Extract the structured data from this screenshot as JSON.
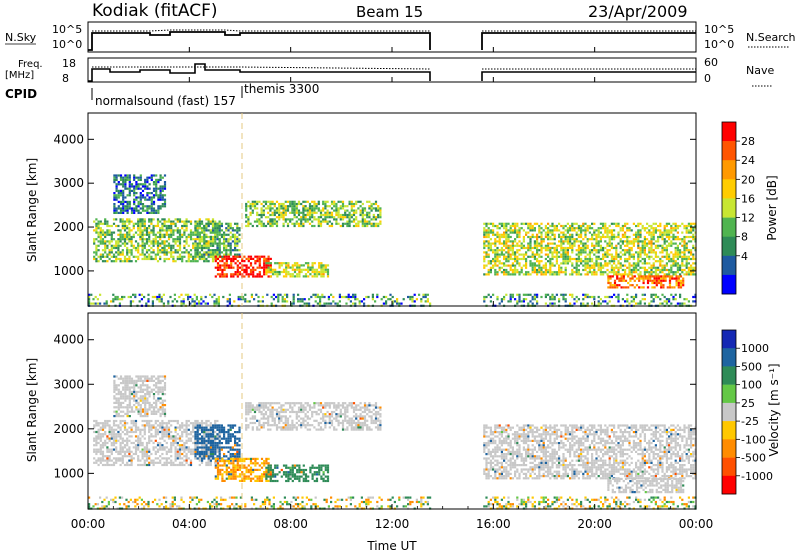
{
  "header": {
    "station": "Kodiak (fitACF)",
    "beam": "Beam 15",
    "date": "23/Apr/2009"
  },
  "strip1": {
    "left_label": "N.Sky",
    "left_ticks": [
      "10^5",
      "10^0"
    ],
    "right_label": "N.Search",
    "right_ticks": [
      "10^5",
      "10^0"
    ]
  },
  "strip2": {
    "left_label_line1": "Freq.",
    "left_label_line2": "[MHz]",
    "left_ticks": [
      "18",
      "8"
    ],
    "right_label": "Nave",
    "right_ticks": [
      "60",
      "0"
    ]
  },
  "cpid": {
    "label": "CPID",
    "modes": [
      {
        "name": "normalsound (fast) 157",
        "start_hour": 0
      },
      {
        "name": "themis 3300",
        "start_hour": 6.1
      }
    ]
  },
  "panel_power": {
    "ylabel": "Slant Range [km]",
    "colorbar_label": "Power [dB]",
    "colorbar_ticks": [
      "28",
      "24",
      "20",
      "16",
      "12",
      "8",
      "4"
    ],
    "colorbar_colors": [
      "#ff0000",
      "#ff5500",
      "#ff9900",
      "#ffcc00",
      "#c8e632",
      "#50b450",
      "#2e8b57",
      "#1e5aa0",
      "#0000ff"
    ]
  },
  "panel_velocity": {
    "ylabel": "Slant Range [km]",
    "colorbar_label": "Velocity [m s⁻¹]",
    "colorbar_ticks": [
      "1000",
      "500",
      "100",
      "25",
      "-25",
      "-100",
      "-500",
      "-1000"
    ],
    "colorbar_colors": [
      "#1428b4",
      "#1e64a0",
      "#2e8b57",
      "#64c846",
      "#c8c8c8",
      "#ffc800",
      "#ff8c00",
      "#ff5000",
      "#ff0000"
    ]
  },
  "chart_data": {
    "type": "heatmap",
    "xlabel": "Time UT",
    "x_ticks": [
      "00:00",
      "04:00",
      "08:00",
      "12:00",
      "16:00",
      "20:00",
      "00:00"
    ],
    "x_range_hours": [
      0,
      24
    ],
    "y_ticks": [
      "1000",
      "2000",
      "3000",
      "4000"
    ],
    "ylim_km": [
      200,
      4600
    ],
    "data_gap_hours": [
      13.5,
      15.6
    ],
    "echo_regions": [
      {
        "t_start": 0.2,
        "t_end": 5.2,
        "range_start_km": 1200,
        "range_end_km": 2200,
        "power_db": 14,
        "velocity": 0
      },
      {
        "t_start": 1.0,
        "t_end": 3.0,
        "range_start_km": 2300,
        "range_end_km": 3200,
        "power_db": 8,
        "velocity": 0
      },
      {
        "t_start": 4.2,
        "t_end": 6.0,
        "range_start_km": 1300,
        "range_end_km": 2100,
        "power_db": 12,
        "velocity": 300
      },
      {
        "t_start": 5.0,
        "t_end": 7.2,
        "range_start_km": 850,
        "range_end_km": 1350,
        "power_db": 28,
        "velocity": -100
      },
      {
        "t_start": 7.0,
        "t_end": 9.5,
        "range_start_km": 850,
        "range_end_km": 1200,
        "power_db": 16,
        "velocity": 100
      },
      {
        "t_start": 6.2,
        "t_end": 11.5,
        "range_start_km": 2000,
        "range_end_km": 2600,
        "power_db": 14,
        "velocity": 0
      },
      {
        "t_start": 15.6,
        "t_end": 24.0,
        "range_start_km": 900,
        "range_end_km": 2100,
        "power_db": 16,
        "velocity": 0
      },
      {
        "t_start": 20.5,
        "t_end": 23.5,
        "range_start_km": 600,
        "range_end_km": 900,
        "power_db": 24,
        "velocity": 0
      }
    ]
  }
}
